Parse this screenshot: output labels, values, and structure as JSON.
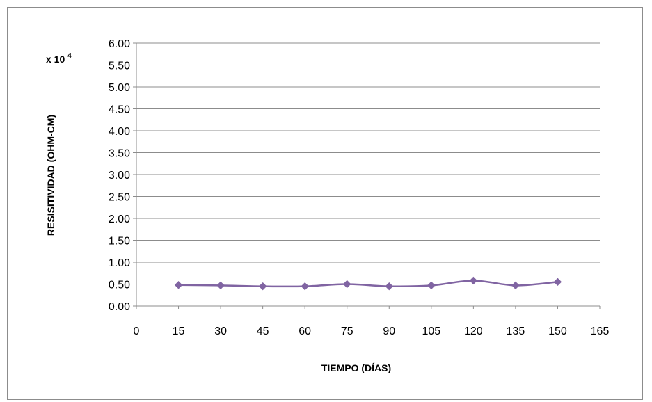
{
  "chart_data": {
    "type": "line",
    "title": "",
    "xlabel": "TIEMPO (DÍAS)",
    "ylabel": "RESISITIVIDAD (OHM-CM)",
    "y_multiplier_prefix": "x 10",
    "y_multiplier_exponent": "4",
    "xlim": [
      0,
      165
    ],
    "ylim": [
      0,
      6
    ],
    "x_ticks": [
      0,
      15,
      30,
      45,
      60,
      75,
      90,
      105,
      120,
      135,
      150,
      165
    ],
    "x_tick_labels": [
      "0",
      "15",
      "30",
      "45",
      "60",
      "75",
      "90",
      "105",
      "120",
      "135",
      "150",
      "165"
    ],
    "y_ticks": [
      0,
      0.5,
      1,
      1.5,
      2,
      2.5,
      3,
      3.5,
      4,
      4.5,
      5,
      5.5,
      6
    ],
    "y_tick_labels": [
      "0.00",
      "0.50",
      "1.00",
      "1.50",
      "2.00",
      "2.50",
      "3.00",
      "3.50",
      "4.00",
      "4.50",
      "5.00",
      "5.50",
      "6.00"
    ],
    "grid": "horizontal",
    "legend": "none",
    "series": [
      {
        "color": "#8064a2",
        "marker": "diamond",
        "x": [
          15,
          30,
          45,
          60,
          75,
          90,
          105,
          120,
          135,
          150
        ],
        "y": [
          0.48,
          0.47,
          0.45,
          0.45,
          0.5,
          0.45,
          0.47,
          0.58,
          0.47,
          0.55
        ]
      }
    ],
    "colors": {
      "gridline": "#8c8c8c",
      "axis": "#8c8c8c",
      "series": "#8064a2"
    }
  }
}
